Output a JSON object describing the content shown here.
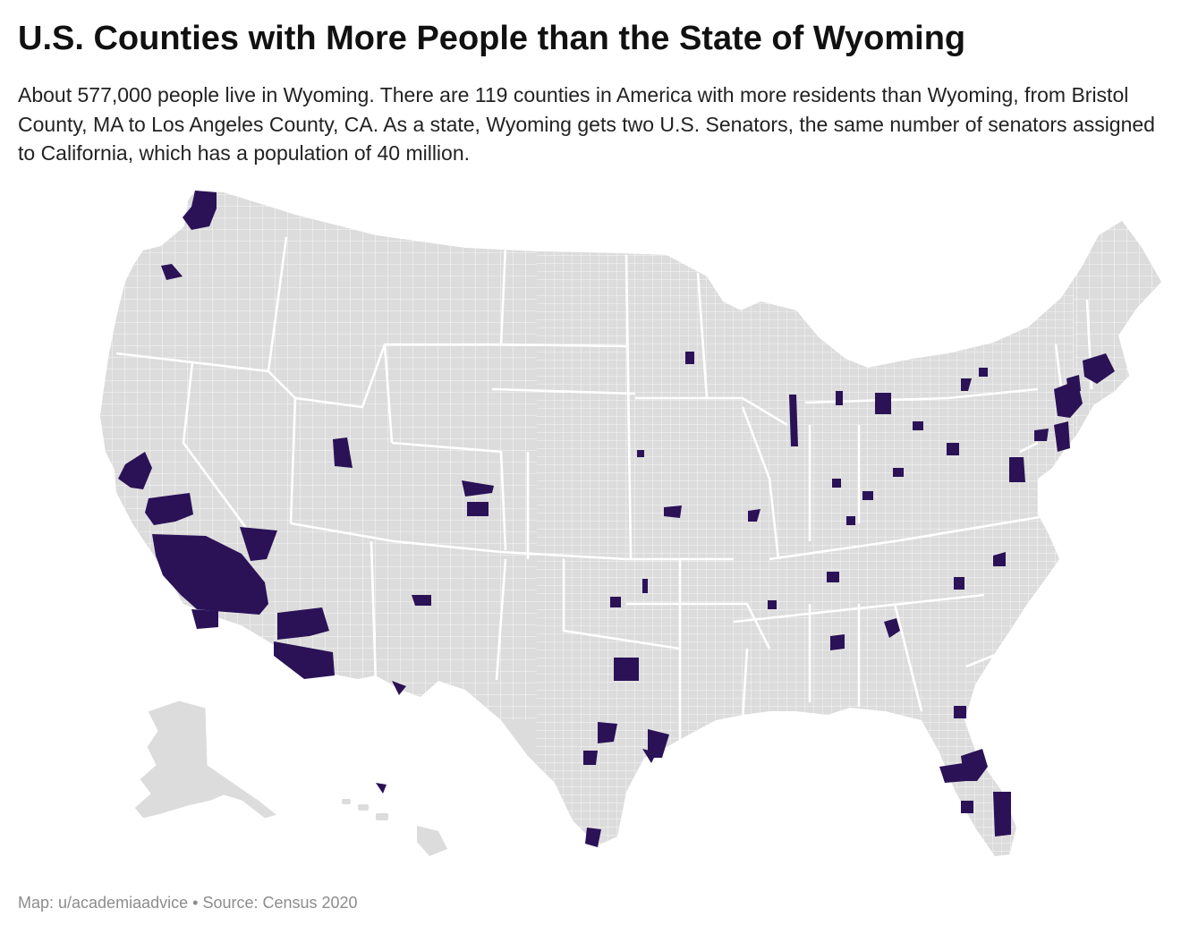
{
  "title": "U.S. Counties with More People than the State of Wyoming",
  "subtitle": "About 577,000 people live in Wyoming. There are 119 counties in America with more residents than Wyoming, from Bristol County, MA to Los Angeles County, CA. As a state, Wyoming gets two U.S. Senators, the same number of senators assigned to California, which has a population of 40 million.",
  "footer": {
    "author": "Map: u/academiaadvice",
    "separator": "•",
    "source": "Source: Census 2020"
  },
  "colors": {
    "highlight": "#2b1257",
    "county_fill": "#dcdcdc",
    "county_border": "#ffffff",
    "background": "#ffffff",
    "footer_text": "#8c8c8c"
  },
  "map": {
    "type": "choropleth",
    "region": "United States counties",
    "highlighted_category": "County population greater than Wyoming (~577,000)",
    "highlighted_count": 119
  }
}
